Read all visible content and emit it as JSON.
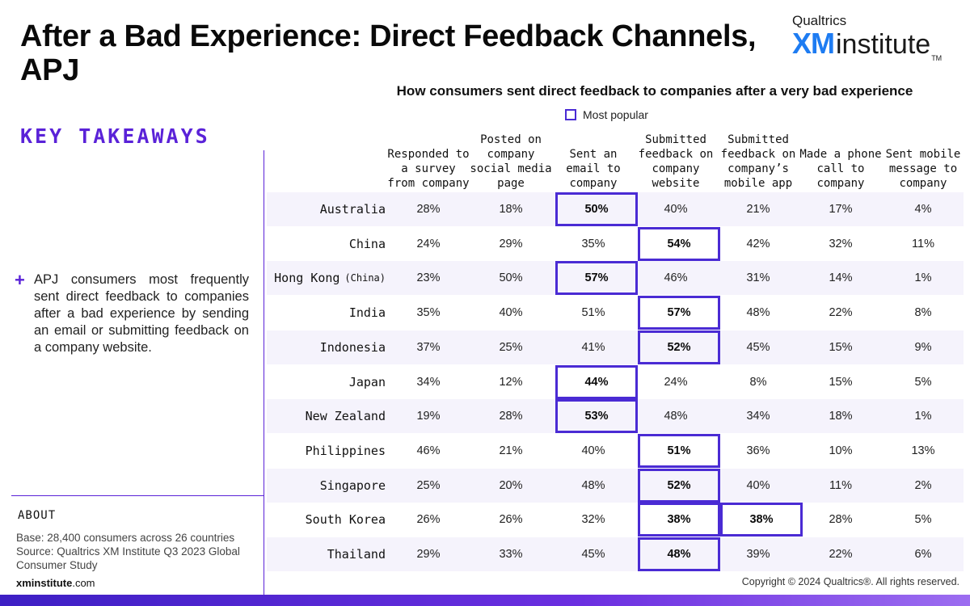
{
  "page": {
    "title": "After a Bad Experience: Direct Feedback Channels, APJ",
    "logo_top": "Qualtrics",
    "logo_xm": "XM",
    "logo_institute": "institute",
    "logo_tm": "TM",
    "key_takeaways": "KEY TAKEAWAYS",
    "takeaway": "APJ consumers most frequently sent direct feedback to companies after a bad experience by sending an email or submitting feedback on a company website.",
    "about_title": "ABOUT",
    "about_base": "Base: 28,400 consumers across 26 countries",
    "about_source": "Source: Qualtrics XM Institute Q3 2023 Global Consumer Study",
    "site_bold": "xminstitute",
    "site_rest": ".com",
    "copyright": "Copyright © 2024 Qualtrics®. All rights reserved."
  },
  "colors": {
    "accent": "#5a22d8",
    "highlight_border": "#4a2bd4",
    "row_shade": "#f5f3fc"
  },
  "chart_data": {
    "type": "table",
    "title": "How consumers sent direct feedback to companies after a very bad experience",
    "legend": "Most popular",
    "columns": [
      "Responded to a survey from company",
      "Posted on company social media page",
      "Sent an email to company",
      "Submitted feedback on company website",
      "Submitted feedback on company’s mobile app",
      "Made a phone call to company",
      "Sent mobile message to company"
    ],
    "rows": [
      {
        "label": "Australia",
        "sub": "",
        "values": [
          "28%",
          "18%",
          "50%",
          "40%",
          "21%",
          "17%",
          "4%"
        ],
        "highlight": [
          2
        ]
      },
      {
        "label": "China",
        "sub": "",
        "values": [
          "24%",
          "29%",
          "35%",
          "54%",
          "42%",
          "32%",
          "11%"
        ],
        "highlight": [
          3
        ]
      },
      {
        "label": "Hong Kong",
        "sub": "(China)",
        "values": [
          "23%",
          "50%",
          "57%",
          "46%",
          "31%",
          "14%",
          "1%"
        ],
        "highlight": [
          2
        ]
      },
      {
        "label": "India",
        "sub": "",
        "values": [
          "35%",
          "40%",
          "51%",
          "57%",
          "48%",
          "22%",
          "8%"
        ],
        "highlight": [
          3
        ]
      },
      {
        "label": "Indonesia",
        "sub": "",
        "values": [
          "37%",
          "25%",
          "41%",
          "52%",
          "45%",
          "15%",
          "9%"
        ],
        "highlight": [
          3
        ]
      },
      {
        "label": "Japan",
        "sub": "",
        "values": [
          "34%",
          "12%",
          "44%",
          "24%",
          "8%",
          "15%",
          "5%"
        ],
        "highlight": [
          2
        ]
      },
      {
        "label": "New Zealand",
        "sub": "",
        "values": [
          "19%",
          "28%",
          "53%",
          "48%",
          "34%",
          "18%",
          "1%"
        ],
        "highlight": [
          2
        ]
      },
      {
        "label": "Philippines",
        "sub": "",
        "values": [
          "46%",
          "21%",
          "40%",
          "51%",
          "36%",
          "10%",
          "13%"
        ],
        "highlight": [
          3
        ]
      },
      {
        "label": "Singapore",
        "sub": "",
        "values": [
          "25%",
          "20%",
          "48%",
          "52%",
          "40%",
          "11%",
          "2%"
        ],
        "highlight": [
          3
        ]
      },
      {
        "label": "South Korea",
        "sub": "",
        "values": [
          "26%",
          "26%",
          "32%",
          "38%",
          "38%",
          "28%",
          "5%"
        ],
        "highlight": [
          3,
          4
        ]
      },
      {
        "label": "Thailand",
        "sub": "",
        "values": [
          "29%",
          "33%",
          "45%",
          "48%",
          "39%",
          "22%",
          "6%"
        ],
        "highlight": [
          3
        ]
      }
    ]
  }
}
